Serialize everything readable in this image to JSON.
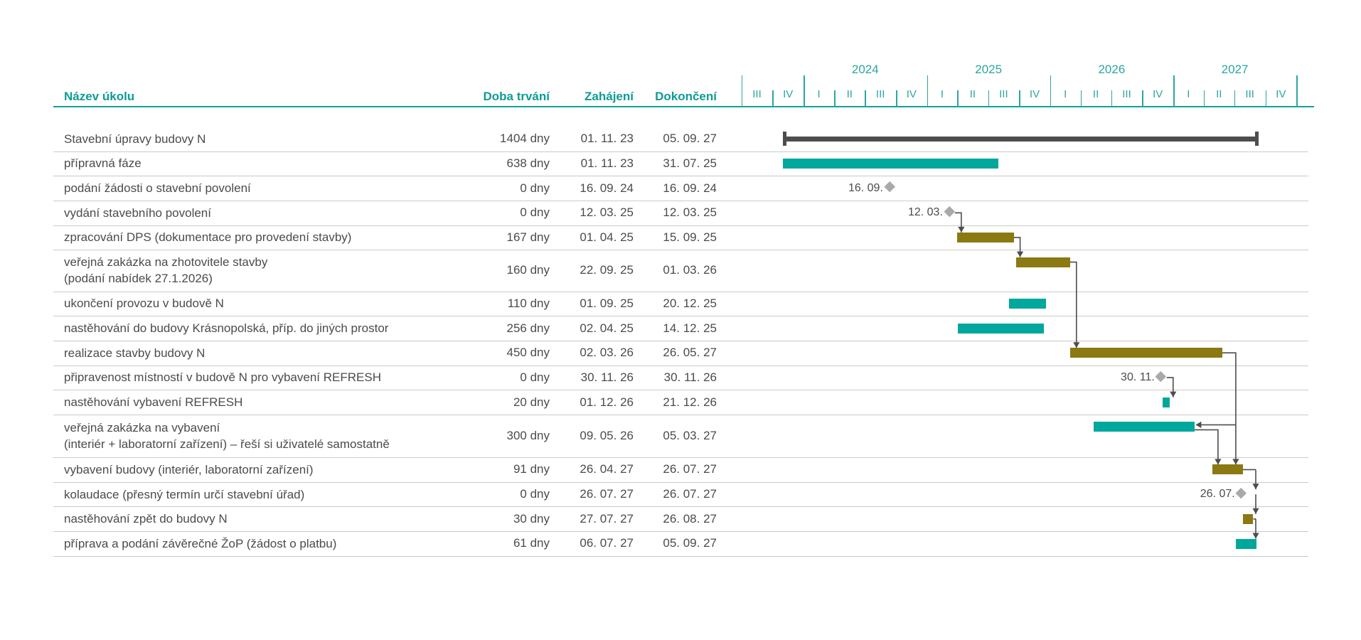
{
  "colors": {
    "teal_bar": "#00a79d",
    "olive_bar": "#8b7912",
    "summary_bar": "#4d4d4f",
    "milestone_diamond": "#a9a9a9",
    "grid_line": "#cbcbcb",
    "header_text": "#0d9c95",
    "timeline_text": "#2ba6a0",
    "body_text": "#4b4b4d",
    "connector": "#4d4d4f"
  },
  "chart_data": {
    "type": "gantt",
    "title": "",
    "columns": [
      {
        "id": "name",
        "label": "Název úkolu"
      },
      {
        "id": "duration",
        "label": "Doba trvání"
      },
      {
        "id": "start",
        "label": "Zahájení"
      },
      {
        "id": "finish",
        "label": "Dokončení"
      }
    ],
    "timeline": {
      "start": "01. 07. 23",
      "end": "01. 01. 28",
      "periods": [
        {
          "year": "2023",
          "label": "",
          "quarters": [
            "III",
            "IV"
          ]
        },
        {
          "year": "2024",
          "label": "2024",
          "quarters": [
            "I",
            "II",
            "III",
            "IV"
          ]
        },
        {
          "year": "2025",
          "label": "2025",
          "quarters": [
            "I",
            "II",
            "III",
            "IV"
          ]
        },
        {
          "year": "2026",
          "label": "2026",
          "quarters": [
            "I",
            "II",
            "III",
            "IV"
          ]
        },
        {
          "year": "2027",
          "label": "2027",
          "quarters": [
            "I",
            "II",
            "III",
            "IV"
          ]
        }
      ]
    },
    "tasks": [
      {
        "name": "Stavební úpravy budovy N",
        "duration": "1404 dny",
        "start": "01. 11. 23",
        "finish": "05. 09. 27",
        "bar": "summary"
      },
      {
        "name": "přípravná fáze",
        "duration": "638 dny",
        "start": "01. 11. 23",
        "finish": "31. 07. 25",
        "bar": "task",
        "color": "teal"
      },
      {
        "name": "podání žádosti o stavební povolení",
        "duration": "0 dny",
        "start": "16. 09. 24",
        "finish": "16. 09. 24",
        "bar": "milestone",
        "milestone_label": "16. 09."
      },
      {
        "name": "vydání stavebního povolení",
        "duration": "0 dny",
        "start": "12. 03. 25",
        "finish": "12. 03. 25",
        "bar": "milestone",
        "milestone_label": "12. 03."
      },
      {
        "name": "zpracování DPS (dokumentace pro provedení stavby)",
        "duration": "167 dny",
        "start": "01. 04. 25",
        "finish": "15. 09. 25",
        "bar": "task",
        "color": "olive"
      },
      {
        "name": "veřejná zakázka na zhotovitele stavby\n(podání nabídek 27.1.2026)",
        "duration": "160 dny",
        "start": "22. 09. 25",
        "finish": "01. 03. 26",
        "bar": "task",
        "color": "olive",
        "tall": true
      },
      {
        "name": "ukončení provozu v budově N",
        "duration": "110 dny",
        "start": "01. 09. 25",
        "finish": "20. 12. 25",
        "bar": "task",
        "color": "teal"
      },
      {
        "name": "nastěhování do budovy Krásnopolská, příp. do jiných prostor",
        "duration": "256 dny",
        "start": "02. 04. 25",
        "finish": "14. 12. 25",
        "bar": "task",
        "color": "teal"
      },
      {
        "name": "realizace stavby budovy N",
        "duration": "450 dny",
        "start": "02. 03. 26",
        "finish": "26. 05. 27",
        "bar": "task",
        "color": "olive"
      },
      {
        "name": "připravenost místností v budově N pro vybavení REFRESH",
        "duration": "0 dny",
        "start": "30. 11. 26",
        "finish": "30. 11. 26",
        "bar": "milestone",
        "milestone_label": "30. 11."
      },
      {
        "name": "nastěhování vybavení REFRESH",
        "duration": "20 dny",
        "start": "01. 12. 26",
        "finish": "21. 12. 26",
        "bar": "task",
        "color": "teal"
      },
      {
        "name": "veřejná zakázka na vybavení\n(interiér + laboratorní zařízení) – řeší si uživatelé samostatně",
        "duration": "300 dny",
        "start": "09. 05. 26",
        "finish": "05. 03. 27",
        "bar": "task",
        "color": "teal",
        "tall": true
      },
      {
        "name": "vybavení budovy (interiér, laboratorní zařízení)",
        "duration": "91 dny",
        "start": "26. 04. 27",
        "finish": "26. 07. 27",
        "bar": "task",
        "color": "olive"
      },
      {
        "name": "kolaudace (přesný termín určí stavební úřad)",
        "duration": "0 dny",
        "start": "26. 07. 27",
        "finish": "26. 07. 27",
        "bar": "milestone",
        "milestone_label": "26. 07."
      },
      {
        "name": "nastěhování zpět do budovy N",
        "duration": "30 dny",
        "start": "27. 07. 27",
        "finish": "26. 08. 27",
        "bar": "task",
        "color": "olive"
      },
      {
        "name": "příprava a podání závěrečné ŽoP (žádost o platbu)",
        "duration": "61 dny",
        "start": "06. 07. 27",
        "finish": "05. 09. 27",
        "bar": "task",
        "color": "teal"
      }
    ],
    "links": [
      {
        "from": 3,
        "to": 4,
        "style": "elbow"
      },
      {
        "from": 4,
        "to": 5,
        "style": "elbow"
      },
      {
        "from": 5,
        "to": 8,
        "style": "elbow"
      },
      {
        "from": 8,
        "to": 12,
        "style": "elbow-rail"
      },
      {
        "from": 8,
        "to": 11,
        "style": "finish-left"
      },
      {
        "from": 9,
        "to": 10,
        "style": "elbow"
      },
      {
        "from": 11,
        "to": 12,
        "style": "elbow-low"
      },
      {
        "from": 12,
        "to": 13,
        "style": "chain"
      },
      {
        "from": 13,
        "to": 14,
        "style": "chain"
      },
      {
        "from": 14,
        "to": 15,
        "style": "chain"
      }
    ]
  }
}
